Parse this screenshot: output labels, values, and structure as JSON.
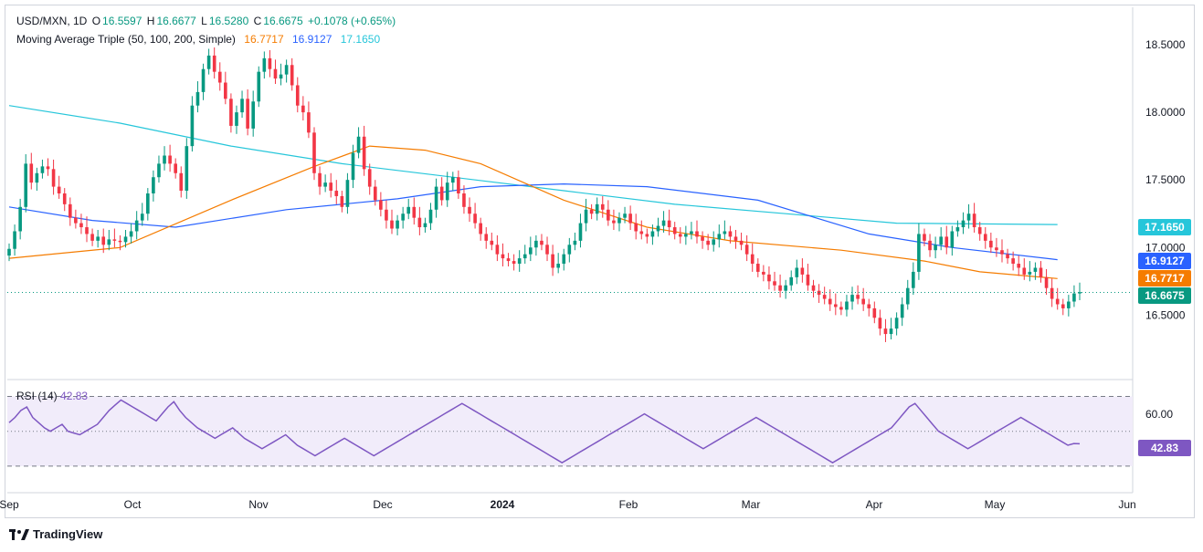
{
  "legend": {
    "symbol": "USD/MXN, 1D",
    "open_label": "O",
    "open": "16.5597",
    "high_label": "H",
    "high": "16.6677",
    "low_label": "L",
    "low": "16.5280",
    "close_label": "C",
    "close": "16.6675",
    "change": "+0.1078 (+0.65%)",
    "ma_title": "Moving Average Triple (50, 100, 200, Simple)",
    "ma50": "16.7717",
    "ma100": "16.9127",
    "ma200": "17.1650"
  },
  "rsi": {
    "label": "RSI (14)",
    "value": "42.83",
    "tick": "60.00",
    "upper": 70,
    "mid": 50,
    "lower": 30,
    "ylim": [
      20,
      75
    ]
  },
  "branding": "TradingView",
  "colors": {
    "up": "#089981",
    "down": "#f23645",
    "ma50": "#f57c00",
    "ma100": "#2962ff",
    "ma200": "#26c6da",
    "rsi": "#7e57c2",
    "rsi_band": "#f1ecfa"
  },
  "chart_data": {
    "type": "candlestick",
    "title": "USD/MXN, 1D",
    "ylim": [
      16.05,
      18.75
    ],
    "y_ticks": [
      "18.5000",
      "18.0000",
      "17.5000",
      "17.0000",
      "16.5000"
    ],
    "x_ticks": [
      "Sep",
      "Oct",
      "Nov",
      "Dec",
      "2024",
      "Feb",
      "Mar",
      "Apr",
      "May",
      "Jun"
    ],
    "last_price": 16.6675,
    "candle_count": 189,
    "ohlc": [],
    "close_series": [
      16.99,
      17.12,
      17.3,
      17.62,
      17.48,
      17.55,
      17.6,
      17.58,
      17.45,
      17.4,
      17.32,
      17.22,
      17.18,
      17.15,
      17.1,
      17.05,
      17.08,
      17.02,
      17.06,
      17.05,
      17.04,
      17.08,
      17.12,
      17.2,
      17.25,
      17.4,
      17.52,
      17.62,
      17.68,
      17.62,
      17.55,
      17.42,
      17.75,
      18.05,
      18.15,
      18.32,
      18.42,
      18.3,
      18.22,
      18.1,
      17.9,
      18.0,
      18.1,
      17.88,
      18.08,
      18.3,
      18.4,
      18.32,
      18.25,
      18.28,
      18.35,
      18.2,
      18.05,
      18.0,
      17.85,
      17.55,
      17.45,
      17.48,
      17.42,
      17.38,
      17.3,
      17.5,
      17.7,
      17.82,
      17.58,
      17.45,
      17.35,
      17.28,
      17.2,
      17.14,
      17.2,
      17.25,
      17.3,
      17.22,
      17.15,
      17.18,
      17.28,
      17.45,
      17.35,
      17.48,
      17.52,
      17.4,
      17.3,
      17.25,
      17.18,
      17.1,
      17.05,
      17.02,
      16.95,
      16.92,
      16.9,
      16.88,
      16.92,
      16.95,
      17.0,
      17.05,
      17.02,
      16.95,
      16.85,
      16.88,
      16.95,
      17.02,
      17.05,
      17.18,
      17.28,
      17.25,
      17.32,
      17.28,
      17.2,
      17.18,
      17.22,
      17.25,
      17.18,
      17.12,
      17.1,
      17.08,
      17.12,
      17.16,
      17.2,
      17.15,
      17.1,
      17.08,
      17.1,
      17.12,
      17.08,
      17.05,
      17.02,
      17.06,
      17.1,
      17.12,
      17.08,
      17.05,
      17.02,
      16.95,
      16.88,
      16.82,
      16.8,
      16.75,
      16.72,
      16.68,
      16.72,
      16.78,
      16.85,
      16.8,
      16.72,
      16.68,
      16.65,
      16.62,
      16.58,
      16.56,
      16.54,
      16.6,
      16.65,
      16.62,
      16.58,
      16.55,
      16.48,
      16.4,
      16.36,
      16.4,
      16.48,
      16.58,
      16.7,
      16.82,
      17.1,
      17.05,
      16.98,
      17.02,
      17.08,
      17.0,
      17.12,
      17.15,
      17.2,
      17.25,
      17.15,
      17.1,
      17.05,
      17.0,
      16.98,
      16.95,
      16.92,
      16.88,
      16.85,
      16.8,
      16.82,
      16.85,
      16.78,
      16.7,
      16.62,
      16.58,
      16.55,
      16.6,
      16.66,
      16.67
    ],
    "ma_lines": {
      "ma50": [
        [
          0,
          16.92
        ],
        [
          20,
          17.0
        ],
        [
          40,
          17.35
        ],
        [
          55,
          17.6
        ],
        [
          65,
          17.75
        ],
        [
          75,
          17.72
        ],
        [
          85,
          17.62
        ],
        [
          100,
          17.35
        ],
        [
          115,
          17.15
        ],
        [
          130,
          17.05
        ],
        [
          150,
          16.98
        ],
        [
          165,
          16.9
        ],
        [
          175,
          16.82
        ],
        [
          189,
          16.77
        ]
      ],
      "ma100": [
        [
          0,
          17.3
        ],
        [
          15,
          17.2
        ],
        [
          30,
          17.15
        ],
        [
          50,
          17.28
        ],
        [
          70,
          17.36
        ],
        [
          85,
          17.45
        ],
        [
          100,
          17.47
        ],
        [
          115,
          17.45
        ],
        [
          135,
          17.35
        ],
        [
          155,
          17.1
        ],
        [
          170,
          17.0
        ],
        [
          189,
          16.91
        ]
      ],
      "ma200": [
        [
          0,
          18.05
        ],
        [
          20,
          17.92
        ],
        [
          40,
          17.75
        ],
        [
          60,
          17.62
        ],
        [
          80,
          17.52
        ],
        [
          100,
          17.42
        ],
        [
          120,
          17.32
        ],
        [
          140,
          17.25
        ],
        [
          160,
          17.18
        ],
        [
          189,
          17.17
        ]
      ]
    },
    "rsi_series": [
      55,
      58,
      62,
      64,
      58,
      55,
      52,
      50,
      52,
      54,
      50,
      49,
      48,
      50,
      52,
      54,
      58,
      62,
      65,
      68,
      66,
      64,
      62,
      60,
      58,
      56,
      60,
      64,
      67,
      62,
      58,
      55,
      52,
      50,
      48,
      46,
      48,
      50,
      52,
      49,
      46,
      44,
      42,
      40,
      42,
      44,
      46,
      48,
      45,
      42,
      40,
      38,
      36,
      38,
      40,
      42,
      44,
      46,
      44,
      42,
      40,
      38,
      36,
      38,
      40,
      42,
      44,
      46,
      48,
      50,
      52,
      54,
      56,
      58,
      60,
      62,
      64,
      66,
      64,
      62,
      60,
      58,
      56,
      54,
      52,
      50,
      48,
      46,
      44,
      42,
      40,
      38,
      36,
      34,
      32,
      34,
      36,
      38,
      40,
      42,
      44,
      46,
      48,
      50,
      52,
      54,
      56,
      58,
      60,
      58,
      56,
      54,
      52,
      50,
      48,
      46,
      44,
      42,
      40,
      42,
      44,
      46,
      48,
      50,
      52,
      54,
      56,
      58,
      56,
      54,
      52,
      50,
      48,
      46,
      44,
      42,
      40,
      38,
      36,
      34,
      32,
      34,
      36,
      38,
      40,
      42,
      44,
      46,
      48,
      50,
      52,
      56,
      60,
      64,
      66,
      62,
      58,
      54,
      50,
      48,
      46,
      44,
      42,
      40,
      42,
      44,
      46,
      48,
      50,
      52,
      54,
      56,
      58,
      56,
      54,
      52,
      50,
      48,
      46,
      44,
      42,
      43,
      42.83
    ]
  }
}
